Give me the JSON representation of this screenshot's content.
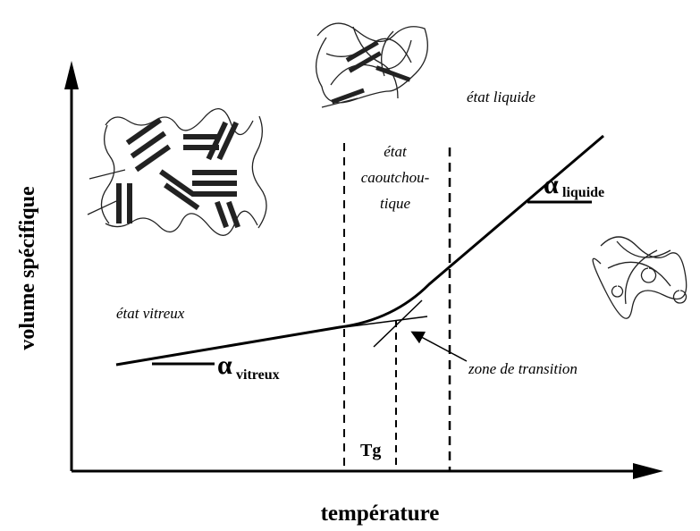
{
  "axes": {
    "y_label": "volume spécifique",
    "x_label": "température"
  },
  "regions": {
    "glassy": "état vitreux",
    "rubbery": [
      "état",
      "caoutchou-",
      "tique"
    ],
    "liquid": "état liquide"
  },
  "coefficients": {
    "glassy": {
      "symbol": "α",
      "subscript": "vitreux"
    },
    "liquid": {
      "symbol": "α",
      "subscript": "liquide"
    }
  },
  "tg": "Tg",
  "transition": "zone de transition"
}
